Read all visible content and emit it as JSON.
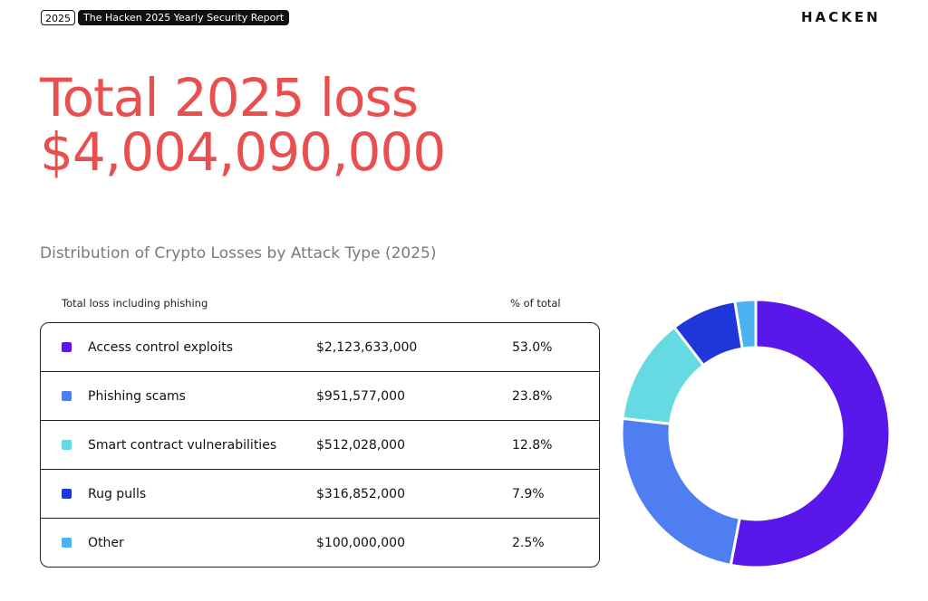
{
  "header": {
    "badge_year": "2025",
    "badge_title": "The Hacken 2025 Yearly Security Report",
    "logo": "HACKEN"
  },
  "headline": {
    "line1": "Total 2025 loss",
    "line2": "$4,004,090,000"
  },
  "chart_data": {
    "type": "donut",
    "title": "Distribution of Crypto Losses by Attack Type (2025)",
    "amount_header": "Total loss including phishing",
    "percent_header": "% of total",
    "categories": [
      "Access control exploits",
      "Phishing scams",
      "Smart contract vulnerabilities",
      "Rug pulls",
      "Other"
    ],
    "amounts": [
      "$2,123,633,000",
      "$951,577,000",
      "$512,028,000",
      "$316,852,000",
      "$100,000,000"
    ],
    "values": [
      53.0,
      23.8,
      12.8,
      7.9,
      2.5
    ],
    "value_labels": [
      "53.0%",
      "23.8%",
      "12.8%",
      "7.9%",
      "2.5%"
    ],
    "colors": [
      "#5a17e9",
      "#4f7ef2",
      "#65dae2",
      "#1f36d8",
      "#4cb3f2"
    ]
  }
}
